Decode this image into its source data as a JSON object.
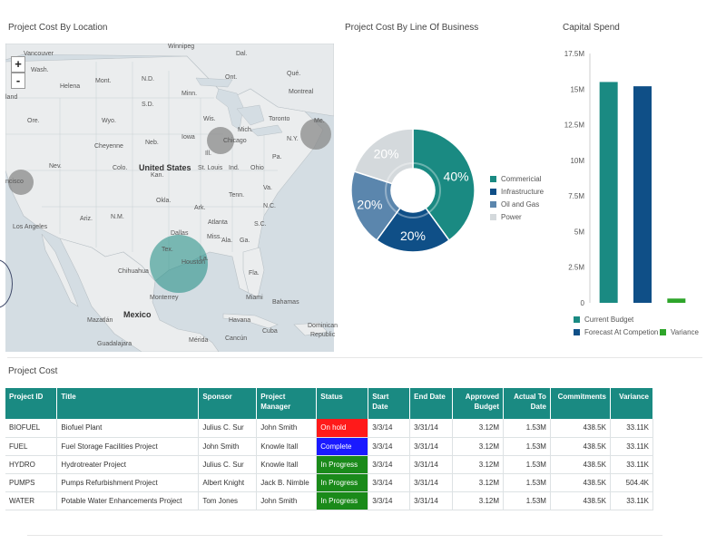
{
  "titles": {
    "map": "Project Cost By Location",
    "pie": "Project Cost By Line Of Business",
    "bar": "Capital Spend",
    "table": "Project Cost"
  },
  "map": {
    "zoom_in": "+",
    "zoom_out": "-",
    "labels": {
      "winnipeg": "Winnipeg",
      "vancouver": "Vancouver",
      "helena": "Helena",
      "montreal": "Montreal",
      "toronto": "Toronto",
      "chicago": "Chicago",
      "cheyenne": "Cheyenne",
      "united_states": "United States",
      "st_louis": "St. Louis",
      "san_francisco": "ncisco",
      "los_angeles": "Los Angeles",
      "atlanta": "Atlanta",
      "dallas": "Dallas",
      "houston": "Houston",
      "chihuahua": "Chihuahua",
      "monterrey": "Monterrey",
      "miami": "Miami",
      "bahamas": "Bahamas",
      "mexico": "Mexico",
      "mazatlan": "Mazatlán",
      "havana": "Havana",
      "cuba": "Cuba",
      "guadalajara": "Guadalajara",
      "merida": "Mérida",
      "cancun": "Cancún",
      "dominican": "Dominican",
      "republic": "Republic",
      "land": "land",
      "wash": "Wash.",
      "nd": "N.D.",
      "sd": "S.D.",
      "mont": "Mont.",
      "minn": "Minn.",
      "wyo": "Wyo.",
      "iowa": "Iowa",
      "neb": "Neb.",
      "colo": "Colo.",
      "kan": "Kan.",
      "okla": "Okla.",
      "nm": "N.M.",
      "ariz": "Ariz.",
      "nev": "Nev.",
      "ore": "Ore.",
      "tenn": "Tenn.",
      "ala": "Ala.",
      "sc": "S.C.",
      "nc": "N.C.",
      "va": "Va.",
      "ohio": "Ohio",
      "ill": "Ill.",
      "ind": "Ind.",
      "wis": "Wis.",
      "mich": "Mich.",
      "ny": "N.Y.",
      "pa": "Pa.",
      "me": "Me.",
      "ark": "Ark.",
      "miss": "Miss.",
      "ga": "Ga.",
      "la": "La.",
      "fla": "Fla.",
      "tex": "Tex.",
      "ont": "Ont.",
      "que": "Qué.",
      "dal": "Dal."
    },
    "bubble_color": "#1a8a82",
    "bubble_gray": "#8a8a8a"
  },
  "pie": {
    "slices": [
      {
        "name": "Commericial",
        "value": 40,
        "label": "40%",
        "color": "#1a8a82"
      },
      {
        "name": "Infrastructure",
        "value": 20,
        "label": "20%",
        "color": "#0f4f87"
      },
      {
        "name": "Oil and Gas",
        "value": 20,
        "label": "20%",
        "color": "#5b86ad"
      },
      {
        "name": "Power",
        "value": 20,
        "label": "20%",
        "color": "#d4d9dc"
      }
    ]
  },
  "chart_data": {
    "type": "bar",
    "categories": [
      "Current Budget",
      "Forecast At Competion",
      "Variance"
    ],
    "values": [
      15.5,
      15.2,
      0.3
    ],
    "colors": [
      "#1a8a82",
      "#0f4f87",
      "#2ea52a"
    ],
    "ylim": [
      0,
      17.5
    ],
    "yticks": [
      "0",
      "2.5M",
      "5M",
      "7.5M",
      "10M",
      "12.5M",
      "15M",
      "17.5M"
    ],
    "legend": [
      {
        "name": "Current Budget",
        "color": "#1a8a82"
      },
      {
        "name": "Forecast At Competion",
        "color": "#0f4f87"
      },
      {
        "name": "Variance",
        "color": "#2ea52a"
      }
    ],
    "legend_position": "bottom"
  },
  "table": {
    "headers": [
      "Project ID",
      "Title",
      "Sponsor",
      "Project Manager",
      "Status",
      "Start Date",
      "End Date",
      "Approved Budget",
      "Actual To Date",
      "Commitments",
      "Variance"
    ],
    "rows": [
      {
        "id": "BIOFUEL",
        "title": "Biofuel Plant",
        "sponsor": "Julius C. Sur",
        "manager": "John Smith",
        "status": "On hold",
        "status_color": "#ff1a1a",
        "start": "3/3/14",
        "end": "3/31/14",
        "budget": "3.12M",
        "actual": "1.53M",
        "commitments": "438.5K",
        "variance": "33.11K"
      },
      {
        "id": "FUEL",
        "title": "Fuel Storage Facilities Project",
        "sponsor": "John Smith",
        "manager": "Knowle Itall",
        "status": "Complete",
        "status_color": "#1a1aff",
        "start": "3/3/14",
        "end": "3/31/14",
        "budget": "3.12M",
        "actual": "1.53M",
        "commitments": "438.5K",
        "variance": "33.11K"
      },
      {
        "id": "HYDRO",
        "title": "Hydrotreater Project",
        "sponsor": "Julius C. Sur",
        "manager": "Knowle Itall",
        "status": "In Progress",
        "status_color": "#1a8a1a",
        "start": "3/3/14",
        "end": "3/31/14",
        "budget": "3.12M",
        "actual": "1.53M",
        "commitments": "438.5K",
        "variance": "33.11K"
      },
      {
        "id": "PUMPS",
        "title": "Pumps Refurbishment Project",
        "sponsor": "Albert Knight",
        "manager": "Jack B. Nimble",
        "status": "In Progress",
        "status_color": "#1a8a1a",
        "start": "3/3/14",
        "end": "3/31/14",
        "budget": "3.12M",
        "actual": "1.53M",
        "commitments": "438.5K",
        "variance": "504.4K"
      },
      {
        "id": "WATER",
        "title": "Potable Water Enhancements Project",
        "sponsor": "Tom Jones",
        "manager": "John Smith",
        "status": "In Progress",
        "status_color": "#1a8a1a",
        "start": "3/3/14",
        "end": "3/31/14",
        "budget": "3.12M",
        "actual": "1.53M",
        "commitments": "438.5K",
        "variance": "33.11K"
      }
    ]
  }
}
